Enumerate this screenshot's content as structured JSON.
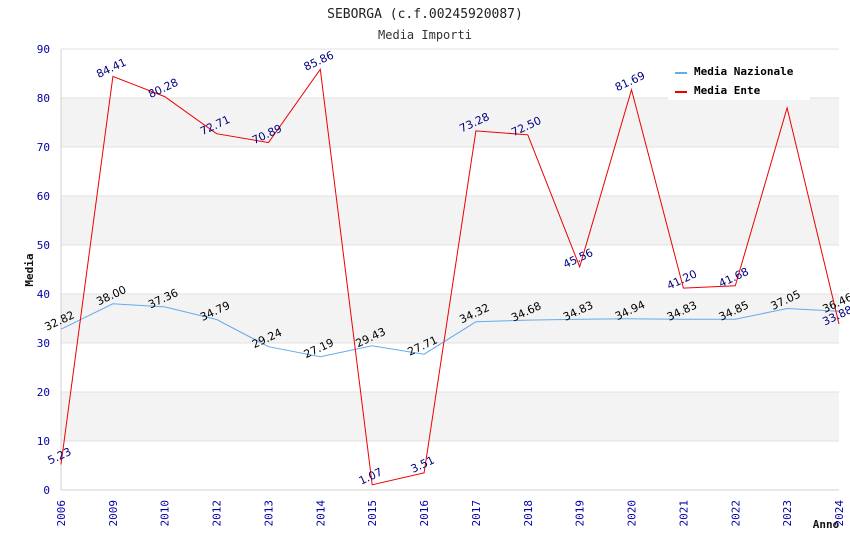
{
  "chart_data": {
    "type": "line",
    "title": "SEBORGA (c.f.00245920087)",
    "subtitle": "Media Importi",
    "xlabel": "Anno",
    "ylabel": "Media",
    "ylim": [
      0,
      90
    ],
    "y_ticks": [
      0,
      10,
      20,
      30,
      40,
      50,
      60,
      70,
      80,
      90
    ],
    "grid": true,
    "legend_position": "top-right",
    "categories": [
      "2006",
      "2009",
      "2010",
      "2012",
      "2013",
      "2014",
      "2015",
      "2016",
      "2017",
      "2018",
      "2019",
      "2020",
      "2021",
      "2022",
      "2023",
      "2024"
    ],
    "series": [
      {
        "name": "Media Nazionale",
        "color": "#66aaee",
        "label_color": "#000000",
        "values": [
          32.82,
          38.0,
          37.36,
          34.79,
          29.24,
          27.19,
          29.43,
          27.71,
          34.32,
          34.68,
          34.83,
          34.94,
          34.83,
          34.85,
          37.05,
          36.46
        ],
        "labels": [
          "32.82",
          "38.00",
          "37.36",
          "34.79",
          "29.24",
          "27.19",
          "29.43",
          "27.71",
          "34.32",
          "34.68",
          "34.83",
          "34.94",
          "34.83",
          "34.85",
          "37.05",
          "36.46"
        ]
      },
      {
        "name": "Media Ente",
        "color": "#ee0000",
        "label_color": "#000080",
        "values": [
          5.23,
          84.41,
          80.28,
          72.71,
          70.89,
          85.86,
          1.07,
          3.51,
          73.28,
          72.5,
          45.56,
          81.69,
          41.2,
          41.68,
          78.0,
          33.88
        ],
        "labels": [
          "5.23",
          "84.41",
          "80.28",
          "72.71",
          "70.89",
          "85.86",
          "1.07",
          "3.51",
          "73.28",
          "72.50",
          "45.56",
          "81.69",
          "41.20",
          "41.68",
          "",
          "33.88"
        ]
      }
    ]
  }
}
